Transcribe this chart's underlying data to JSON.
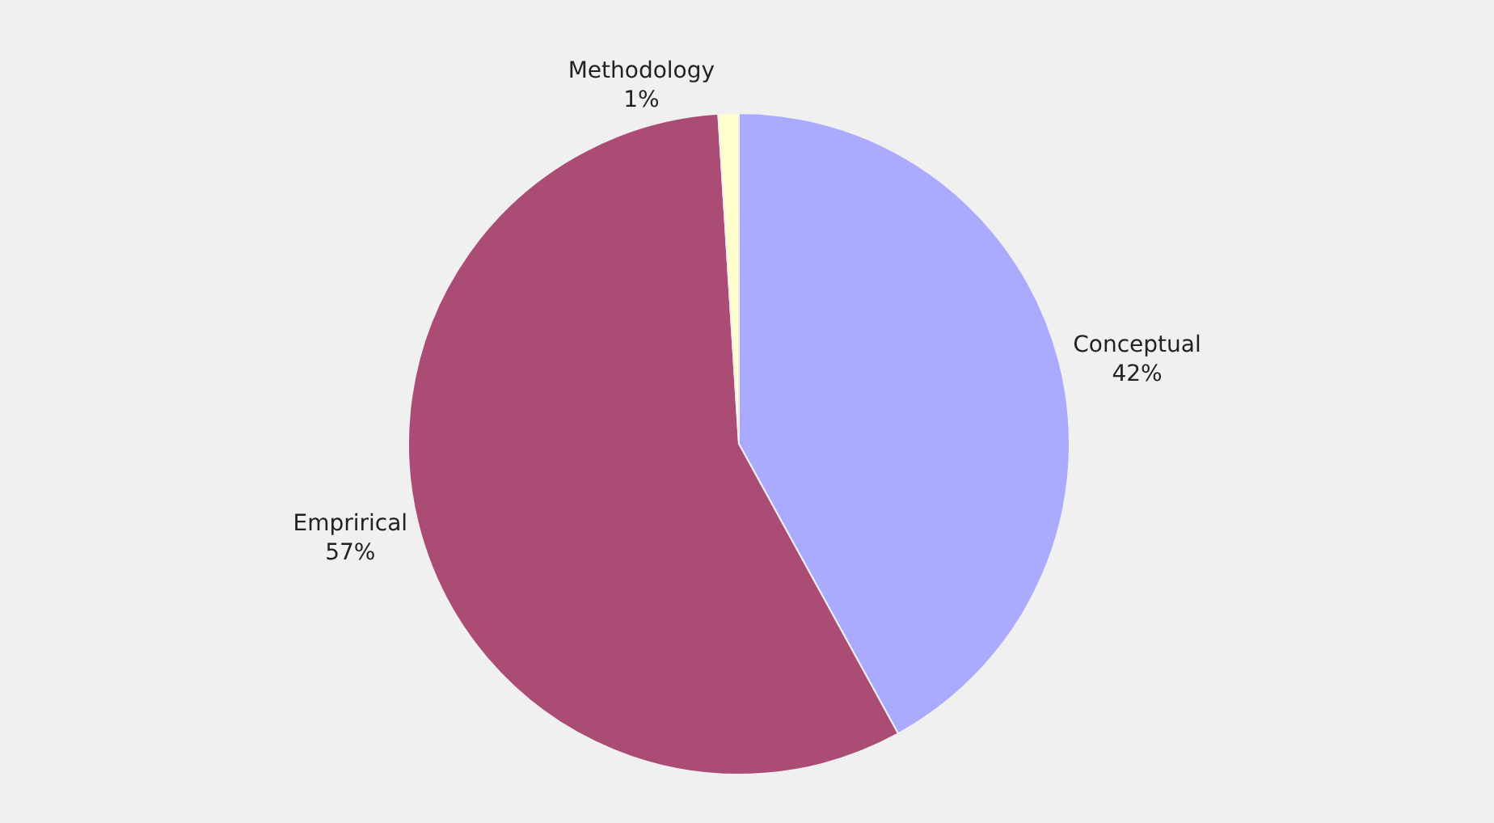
{
  "chart_data": {
    "type": "pie",
    "categories": [
      "Conceptual",
      "Emprirical",
      "Methodology"
    ],
    "values": [
      42,
      57,
      1
    ],
    "value_labels": [
      "42%",
      "57%",
      "1%"
    ],
    "colors": [
      "#aaaaff",
      "#ab4c74",
      "#ffffcc"
    ],
    "legend": false
  }
}
